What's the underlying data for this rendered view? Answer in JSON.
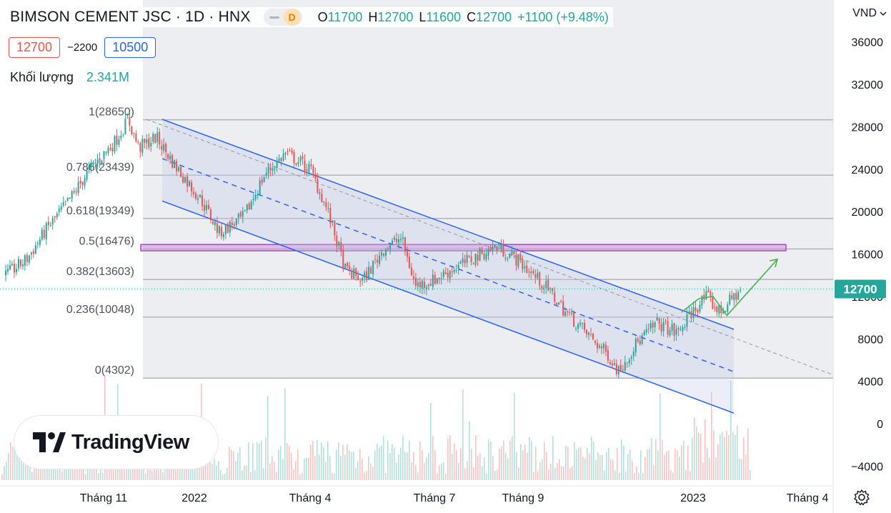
{
  "header": {
    "symbol": "BIMSON CEMENT JSC · 1D · HNX",
    "badge": "D",
    "open_label": "O",
    "open": "11700",
    "high_label": "H",
    "high": "12700",
    "low_label": "L",
    "low": "11600",
    "close_label": "C",
    "close": "12700",
    "change": "+1100 (+9.48%)"
  },
  "price_boxes": {
    "left": "12700",
    "spread": "−2200",
    "right": "10500"
  },
  "volume": {
    "label": "Khối lượng",
    "value": "2.341M"
  },
  "logo": {
    "text": "TradingView"
  },
  "currency": "VND",
  "last_price_tag": "12700",
  "colors": {
    "up": "#26a69a",
    "down": "#ef5350",
    "channel": "#2962ff",
    "fib": "#9598a1",
    "zone": "#9c27b0",
    "arrow": "#4caf50"
  },
  "chart_data": {
    "type": "candlestick",
    "symbol": "BIMSON CEMENT JSC",
    "interval": "1D",
    "exchange": "HNX",
    "y_axis": {
      "ticks": [
        36000,
        32000,
        28000,
        24000,
        20000,
        16000,
        12000,
        8000,
        4000,
        0,
        -4000
      ],
      "tick_labels": [
        "36000",
        "32000",
        "28000",
        "24000",
        "20000",
        "16000",
        "12000",
        "8000",
        "4000",
        "0",
        "−4000"
      ],
      "unit": "VND"
    },
    "x_axis": {
      "tick_labels": [
        "Tháng 11",
        "2022",
        "Tháng 4",
        "Tháng 7",
        "Tháng 9",
        "2023",
        "Tháng 4"
      ]
    },
    "fibonacci": [
      {
        "label": "1(28650)",
        "level": 1,
        "price": 28650
      },
      {
        "label": "0.786(23439)",
        "level": 0.786,
        "price": 23439
      },
      {
        "label": "0.618(19349)",
        "level": 0.618,
        "price": 19349
      },
      {
        "label": "0.5(16476)",
        "level": 0.5,
        "price": 16476
      },
      {
        "label": "0.382(13603)",
        "level": 0.382,
        "price": 13603
      },
      {
        "label": "0.236(10048)",
        "level": 0.236,
        "price": 10048
      },
      {
        "label": "0(4302)",
        "level": 0,
        "price": 4302
      }
    ],
    "resistance_zone": [
      16300,
      16900
    ],
    "last_price": 12700,
    "price_path": [
      {
        "t": 0,
        "p": 14000
      },
      {
        "t": 0.03,
        "p": 15500
      },
      {
        "t": 0.06,
        "p": 18500
      },
      {
        "t": 0.09,
        "p": 21000
      },
      {
        "t": 0.12,
        "p": 24000
      },
      {
        "t": 0.155,
        "p": 26500
      },
      {
        "t": 0.175,
        "p": 28650
      },
      {
        "t": 0.19,
        "p": 26000
      },
      {
        "t": 0.215,
        "p": 27000
      },
      {
        "t": 0.24,
        "p": 24500
      },
      {
        "t": 0.28,
        "p": 21000
      },
      {
        "t": 0.305,
        "p": 18000
      },
      {
        "t": 0.34,
        "p": 19500
      },
      {
        "t": 0.37,
        "p": 23500
      },
      {
        "t": 0.4,
        "p": 25500
      },
      {
        "t": 0.435,
        "p": 24000
      },
      {
        "t": 0.46,
        "p": 20000
      },
      {
        "t": 0.485,
        "p": 14500
      },
      {
        "t": 0.51,
        "p": 13500
      },
      {
        "t": 0.54,
        "p": 16500
      },
      {
        "t": 0.565,
        "p": 17500
      },
      {
        "t": 0.585,
        "p": 13000
      },
      {
        "t": 0.61,
        "p": 13500
      },
      {
        "t": 0.65,
        "p": 15000
      },
      {
        "t": 0.7,
        "p": 16700
      },
      {
        "t": 0.73,
        "p": 15500
      },
      {
        "t": 0.77,
        "p": 13000
      },
      {
        "t": 0.8,
        "p": 10500
      },
      {
        "t": 0.83,
        "p": 8500
      },
      {
        "t": 0.86,
        "p": 6500
      },
      {
        "t": 0.875,
        "p": 5000
      },
      {
        "t": 0.9,
        "p": 7500
      },
      {
        "t": 0.93,
        "p": 9500
      },
      {
        "t": 0.96,
        "p": 8500
      },
      {
        "t": 0.98,
        "p": 10500
      },
      {
        "t": 1.0,
        "p": 12000
      },
      {
        "t": 1.02,
        "p": 10500
      },
      {
        "t": 1.05,
        "p": 12700
      }
    ],
    "volume_axis_note": "volume bars shown at bottom of pane"
  }
}
